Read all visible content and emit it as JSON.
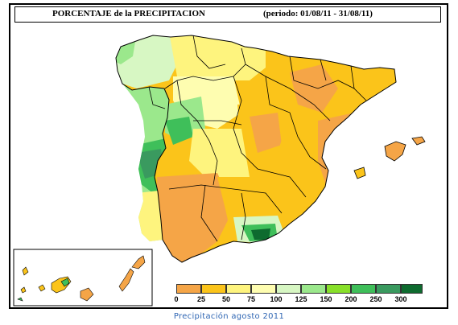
{
  "header": {
    "title": "PORCENTAJE de la PRECIPITACION",
    "period": "(periodo: 01/08/11 - 31/08/11)"
  },
  "legend": {
    "colors": [
      "#f5a547",
      "#fbc41a",
      "#fef47e",
      "#fefdb0",
      "#d7f7c3",
      "#9be88c",
      "#88e02a",
      "#3fbf5a",
      "#3a9a5f",
      "#0e6b2f"
    ],
    "ticks": [
      "0",
      "25",
      "50",
      "75",
      "100",
      "125",
      "150",
      "200",
      "250",
      "300"
    ]
  },
  "map": {
    "sea_color": "#ffffff",
    "border_color": "#000000"
  },
  "caption": "Precipitación agosto 2011"
}
